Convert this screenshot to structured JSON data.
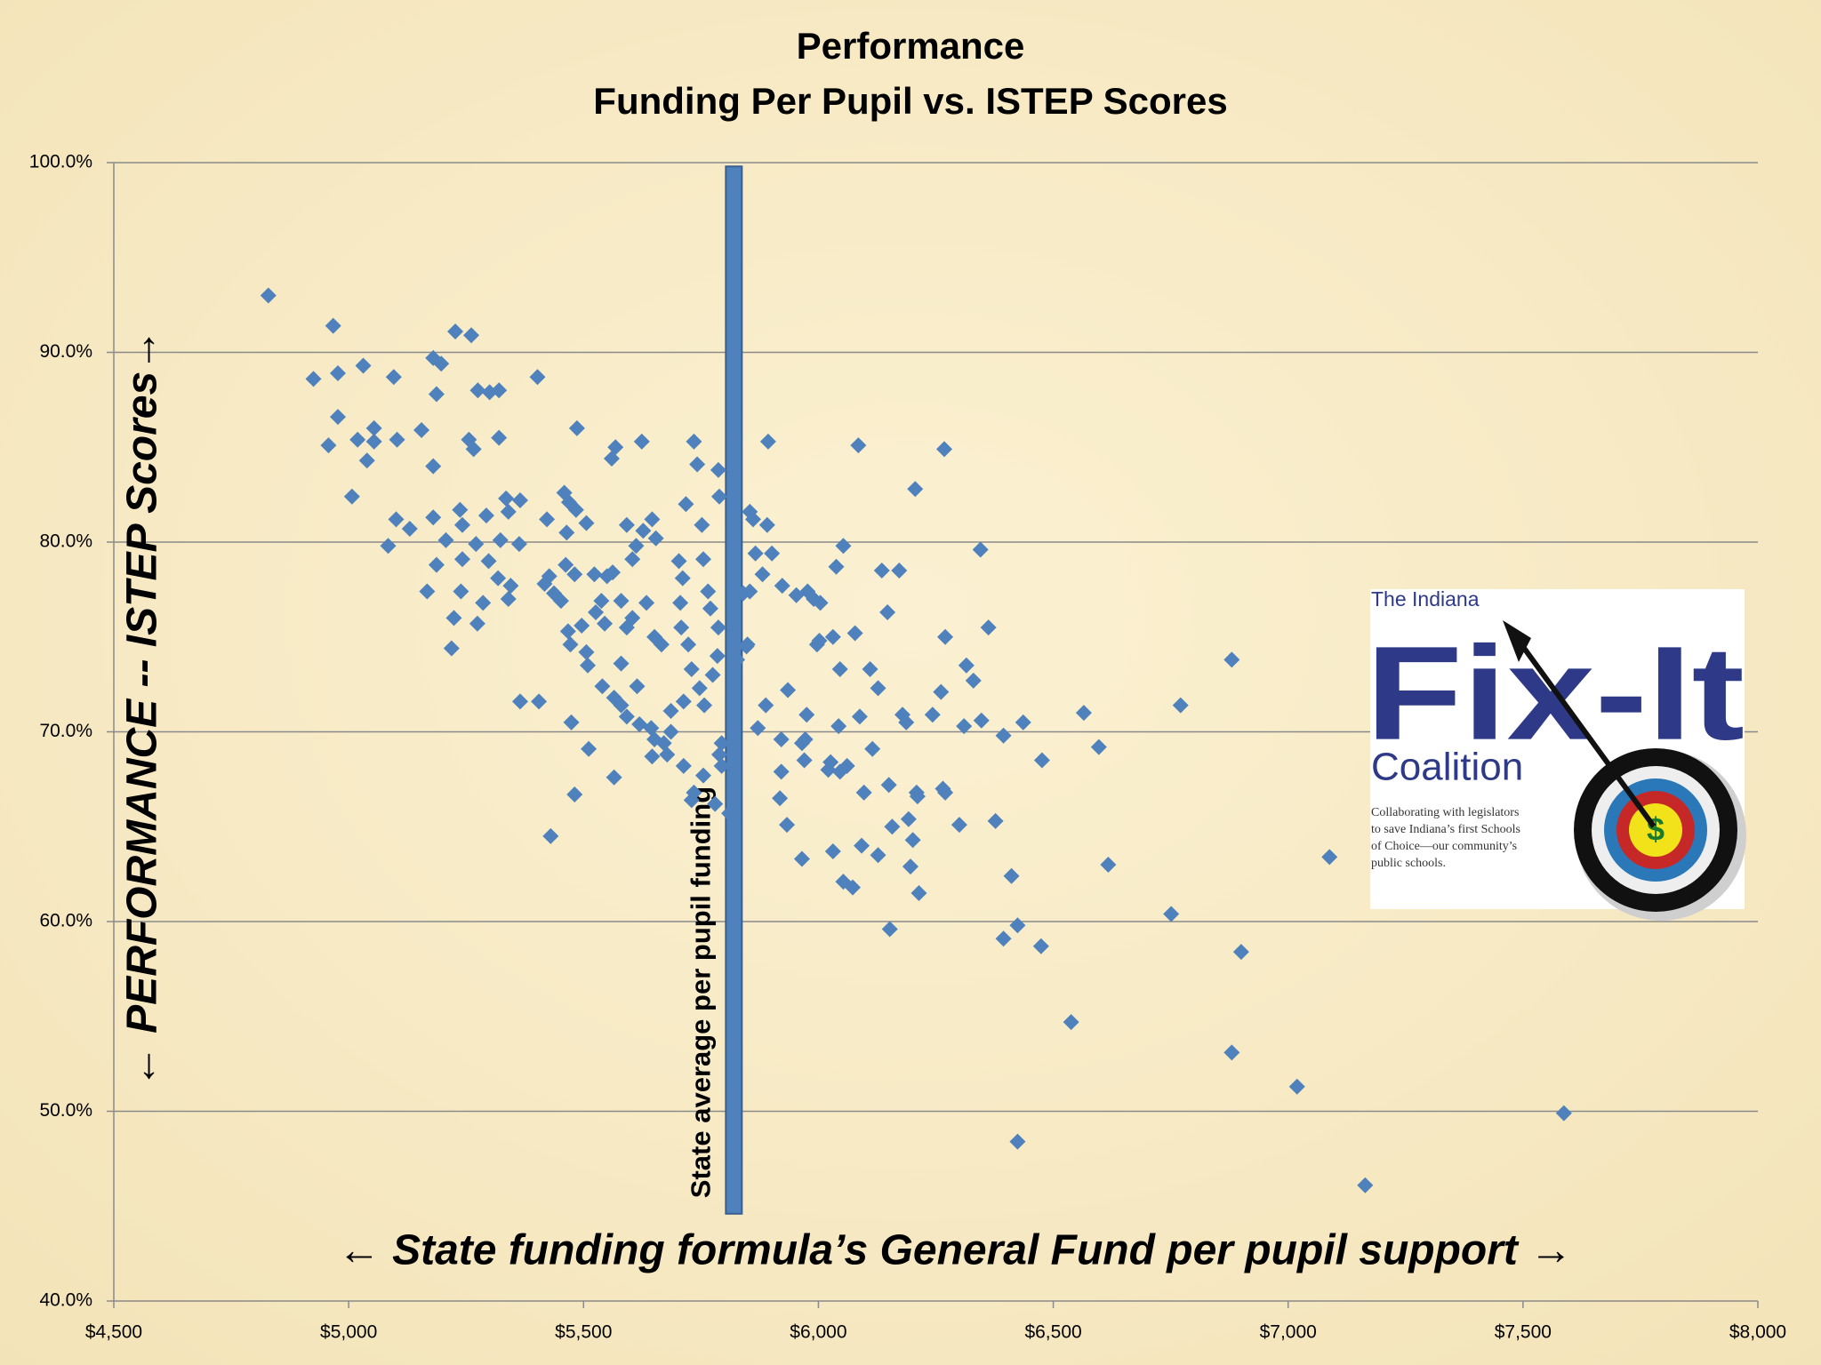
{
  "chart_data": {
    "type": "scatter",
    "title": [
      "Performance",
      "Funding Per Pupil vs. ISTEP Scores"
    ],
    "x_label": "←  State funding formula’s General Fund per pupil support →",
    "y_label": "← PERFORMANCE -- ISTEP  Scores→",
    "color": "#4f81bd",
    "grid": true,
    "xlim": [
      4500,
      8000
    ],
    "ylim": [
      40,
      100
    ],
    "xticks": [
      {
        "value": 4500,
        "label": "$4,500"
      },
      {
        "value": 5000,
        "label": "$5,000"
      },
      {
        "value": 5500,
        "label": "$5,500"
      },
      {
        "value": 6000,
        "label": "$6,000"
      },
      {
        "value": 6500,
        "label": "$6,500"
      },
      {
        "value": 7000,
        "label": "$7,000"
      },
      {
        "value": 7500,
        "label": "$7,500"
      },
      {
        "value": 8000,
        "label": "$8,000"
      }
    ],
    "yticks": [
      {
        "value": 40,
        "label": "40.0%"
      },
      {
        "value": 50,
        "label": "50.0%"
      },
      {
        "value": 60,
        "label": "60.0%"
      },
      {
        "value": 70,
        "label": "70.0%"
      },
      {
        "value": 80,
        "label": "80.0%"
      },
      {
        "value": 90,
        "label": "90.0%"
      },
      {
        "value": 100,
        "label": "100.0%"
      }
    ],
    "reference_line": {
      "x": 5820,
      "y_range": [
        44.6,
        99.8
      ],
      "label": "State average per pupil funding",
      "color": "#4f81bd"
    },
    "x": [
      4829,
      4925,
      4967,
      4977,
      5031,
      5096,
      4977,
      4957,
      5019,
      5054,
      5054,
      5039,
      5103,
      5155,
      5180,
      5197,
      5227,
      5261,
      5187,
      5275,
      5300,
      5320,
      5402,
      5256,
      5266,
      5320,
      5180,
      5007,
      5101,
      5130,
      5084,
      5180,
      5207,
      5237,
      5242,
      5187,
      5242,
      5167,
      5239,
      5224,
      5219,
      5274,
      5286,
      5271,
      5298,
      5293,
      5323,
      5335,
      5340,
      5365,
      5363,
      5345,
      5340,
      5318,
      5422,
      5417,
      5437,
      5452,
      5427,
      5459,
      5469,
      5484,
      5506,
      5464,
      5462,
      5481,
      5523,
      5550,
      5562,
      5486,
      5568,
      5560,
      5624,
      5365,
      5405,
      5430,
      5474,
      5481,
      5467,
      5472,
      5506,
      5509,
      5496,
      5526,
      5538,
      5545,
      5580,
      5592,
      5604,
      5634,
      5592,
      5604,
      5612,
      5627,
      5646,
      5654,
      5651,
      5666,
      5580,
      5540,
      5565,
      5580,
      5614,
      5592,
      5619,
      5644,
      5651,
      5671,
      5686,
      5678,
      5646,
      5565,
      5511,
      5703,
      5711,
      5706,
      5708,
      5723,
      5730,
      5735,
      5718,
      5742,
      5752,
      5755,
      5765,
      5770,
      5787,
      5787,
      5789,
      5747,
      5757,
      5713,
      5686,
      5713,
      5730,
      5735,
      5755,
      5794,
      5854,
      5861,
      5893,
      5891,
      5866,
      5901,
      5881,
      5854,
      5849,
      5923,
      5953,
      5977,
      5990,
      6004,
      5997,
      6002,
      5935,
      5888,
      5871,
      5921,
      5921,
      5918,
      5933,
      5965,
      5972,
      5970,
      5975,
      5965,
      6021,
      6026,
      6046,
      6061,
      6031,
      6053,
      6073,
      6043,
      6053,
      6038,
      6031,
      6046,
      6078,
      6085,
      6088,
      6097,
      6092,
      6110,
      6115,
      6127,
      6127,
      6135,
      6147,
      6150,
      6157,
      6152,
      6172,
      6179,
      6187,
      6192,
      6196,
      6201,
      6206,
      6209,
      6214,
      6211,
      6243,
      6261,
      6270,
      6265,
      6270,
      6268,
      6300,
      6310,
      6315,
      6330,
      6345,
      6347,
      6362,
      6377,
      6394,
      6394,
      6411,
      6424,
      6424,
      6436,
      6476,
      6474,
      6538,
      6565,
      6597,
      6617,
      6751,
      6771,
      6880,
      6880,
      6900,
      7019,
      7088,
      7164,
      7587,
      5840,
      5847,
      5827,
      5785,
      5775,
      5789,
      5780,
      5810,
      5794
    ],
    "values": [
      93.0,
      88.6,
      91.4,
      88.9,
      89.3,
      88.7,
      86.6,
      85.1,
      85.4,
      86.0,
      85.3,
      84.3,
      85.4,
      85.9,
      89.7,
      89.4,
      91.1,
      90.9,
      87.8,
      88.0,
      87.9,
      88.0,
      88.7,
      85.4,
      84.9,
      85.5,
      84.0,
      82.4,
      81.2,
      80.7,
      79.8,
      81.3,
      80.1,
      81.7,
      80.9,
      78.8,
      79.1,
      77.4,
      77.4,
      76.0,
      74.4,
      75.7,
      76.8,
      79.9,
      79.0,
      81.4,
      80.1,
      82.3,
      81.6,
      82.2,
      79.9,
      77.7,
      77.0,
      78.1,
      81.2,
      77.8,
      77.3,
      76.9,
      78.2,
      82.6,
      82.1,
      81.7,
      81.0,
      80.5,
      78.8,
      78.3,
      78.3,
      78.2,
      78.4,
      86.0,
      85.0,
      84.4,
      85.3,
      71.6,
      71.6,
      64.5,
      70.5,
      66.7,
      75.3,
      74.6,
      74.2,
      73.5,
      75.6,
      76.3,
      76.9,
      75.7,
      76.9,
      75.5,
      76.0,
      76.8,
      80.9,
      79.1,
      79.8,
      80.6,
      81.2,
      80.2,
      75.0,
      74.6,
      73.6,
      72.4,
      71.8,
      71.4,
      72.4,
      70.8,
      70.4,
      70.2,
      69.6,
      69.4,
      70.0,
      68.8,
      68.7,
      67.6,
      69.1,
      79.0,
      78.1,
      76.8,
      75.5,
      74.6,
      73.3,
      85.3,
      82.0,
      84.1,
      80.9,
      79.1,
      77.4,
      76.5,
      75.5,
      83.8,
      82.4,
      72.3,
      71.4,
      71.6,
      71.1,
      68.2,
      66.4,
      66.8,
      67.7,
      69.4,
      81.6,
      81.2,
      85.3,
      80.9,
      79.4,
      79.4,
      78.3,
      77.4,
      74.6,
      77.7,
      77.2,
      77.4,
      77.0,
      76.8,
      74.6,
      74.8,
      72.2,
      71.4,
      70.2,
      69.6,
      67.9,
      66.5,
      65.1,
      69.4,
      69.6,
      68.5,
      70.9,
      63.3,
      68.0,
      68.4,
      67.9,
      68.2,
      63.7,
      62.1,
      61.8,
      70.3,
      79.8,
      78.7,
      75.0,
      73.3,
      75.2,
      85.1,
      70.8,
      66.8,
      64.0,
      73.3,
      69.1,
      72.3,
      63.5,
      78.5,
      76.3,
      67.2,
      65.0,
      59.6,
      78.5,
      70.9,
      70.5,
      65.4,
      62.9,
      64.3,
      82.8,
      66.8,
      61.5,
      66.6,
      70.9,
      72.1,
      66.8,
      67.0,
      75.0,
      84.9,
      65.1,
      70.3,
      73.5,
      72.7,
      79.6,
      70.6,
      75.5,
      65.3,
      69.8,
      59.1,
      62.4,
      59.8,
      48.4,
      70.5,
      68.5,
      58.7,
      54.7,
      71.0,
      69.2,
      63.0,
      60.4,
      71.4,
      73.8,
      53.1,
      58.4,
      51.3,
      63.4,
      46.1,
      49.9,
      77.3,
      74.5,
      73.8,
      74.0,
      73.0,
      68.8,
      66.2,
      65.7,
      68.2
    ]
  },
  "logo": {
    "top": "The Indiana",
    "name": "Fix-It",
    "bottom": "Coalition",
    "tagline": [
      "Collaborating with legislators",
      "to save Indiana’s first Schools",
      "of Choice—our community’s",
      "public schools."
    ]
  }
}
